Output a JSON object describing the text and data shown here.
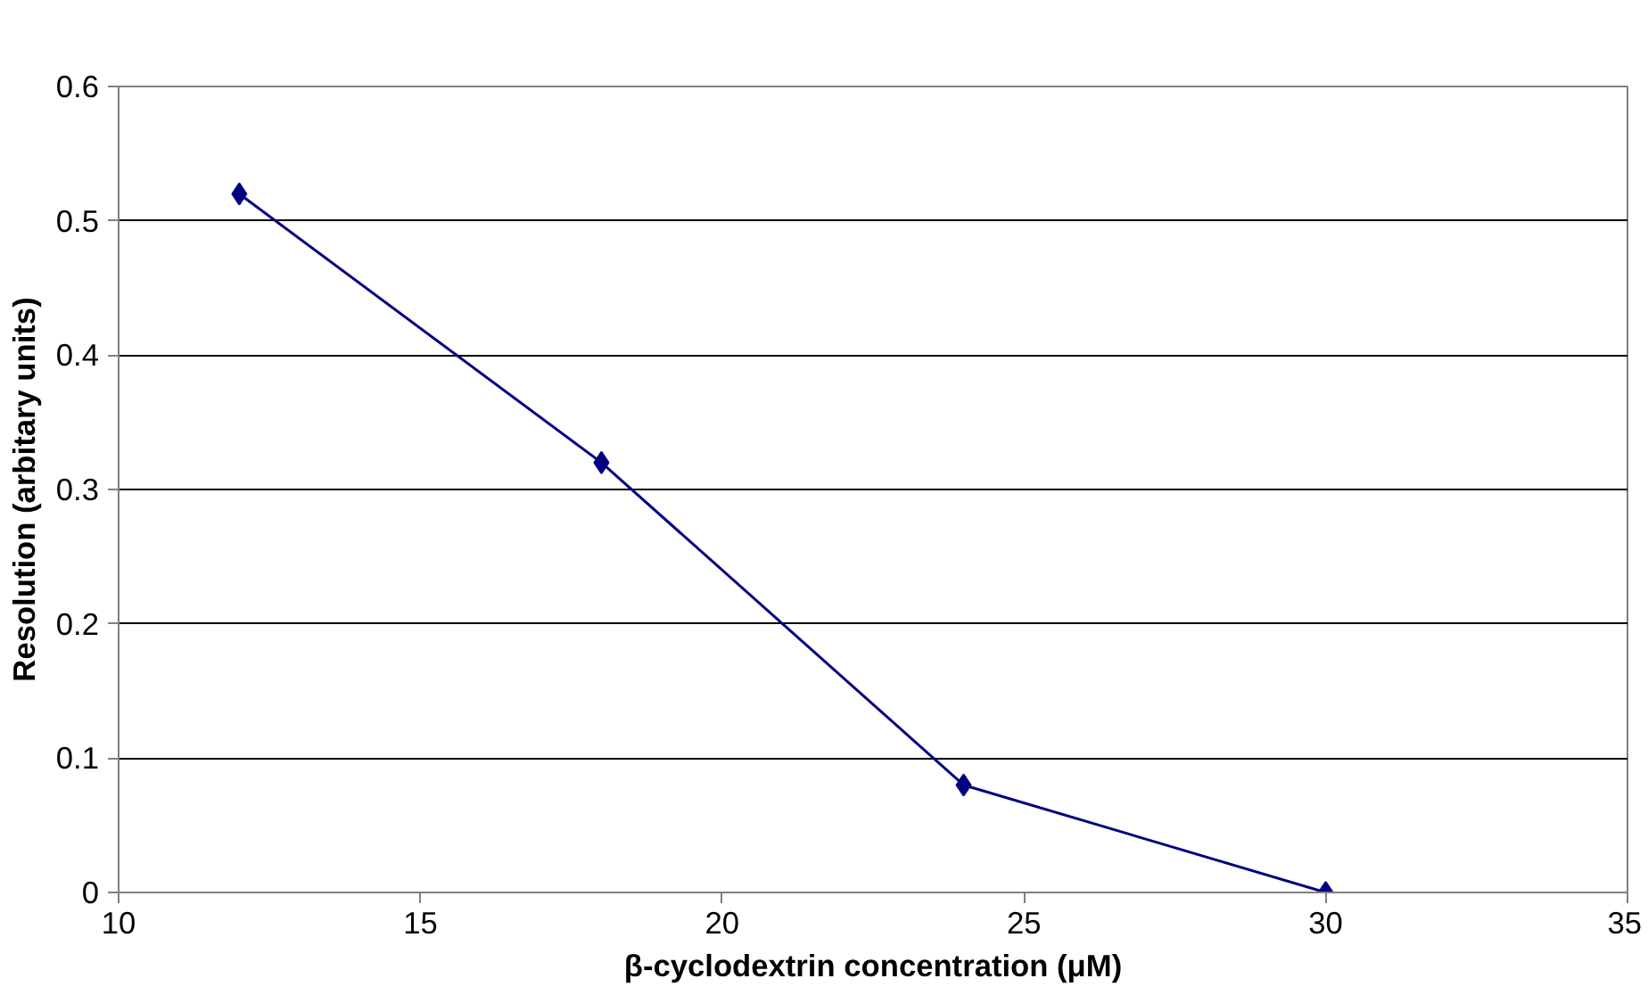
{
  "chart_data": {
    "type": "line",
    "xlabel": "β-cyclodextrin concentration (μM)",
    "ylabel": "Resolution (arbitary units)",
    "x": [
      12,
      18,
      24,
      30
    ],
    "series": [
      {
        "color": "#000080",
        "values": [
          0.52,
          0.32,
          0.08,
          0
        ]
      }
    ],
    "xlim": [
      10,
      35
    ],
    "xticks": [
      10,
      15,
      20,
      25,
      30,
      35
    ],
    "ylim": [
      0,
      0.6
    ],
    "yticks": [
      0,
      0.1,
      0.2,
      0.3,
      0.4,
      0.5,
      0.6
    ],
    "grid": "y",
    "marker": "diamond",
    "line_style": "solid"
  }
}
